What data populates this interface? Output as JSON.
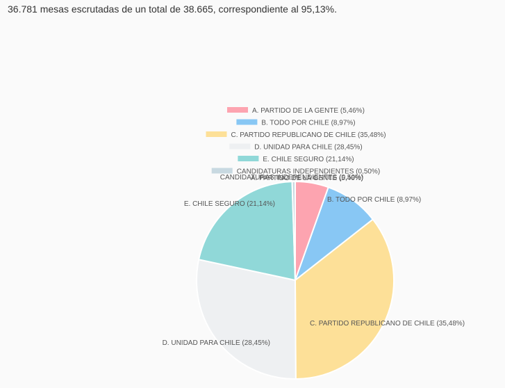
{
  "summary": {
    "text": "36.781 mesas escrutadas de un total de 38.665, correspondiente al 95,13%."
  },
  "chart_data": {
    "type": "pie",
    "title": "",
    "legend_position": "top",
    "slices": [
      {
        "label": "A. PARTIDO DE LA GENTE (5,46%)",
        "value": 5.46,
        "color": "#fda4b0"
      },
      {
        "label": "B. TODO POR CHILE (8,97%)",
        "value": 8.97,
        "color": "#88c7f4"
      },
      {
        "label": "C. PARTIDO REPUBLICANO DE CHILE (35,48%)",
        "value": 35.48,
        "color": "#fde098"
      },
      {
        "label": "D. UNIDAD PARA CHILE (28,45%)",
        "value": 28.45,
        "color": "#eef0f2"
      },
      {
        "label": "E. CHILE SEGURO (21,14%)",
        "value": 21.14,
        "color": "#90d8d8"
      },
      {
        "label": "CANDIDATURAS INDEPENDIENTES (0,50%)",
        "value": 0.5,
        "color": "#c8d9e1"
      }
    ]
  }
}
